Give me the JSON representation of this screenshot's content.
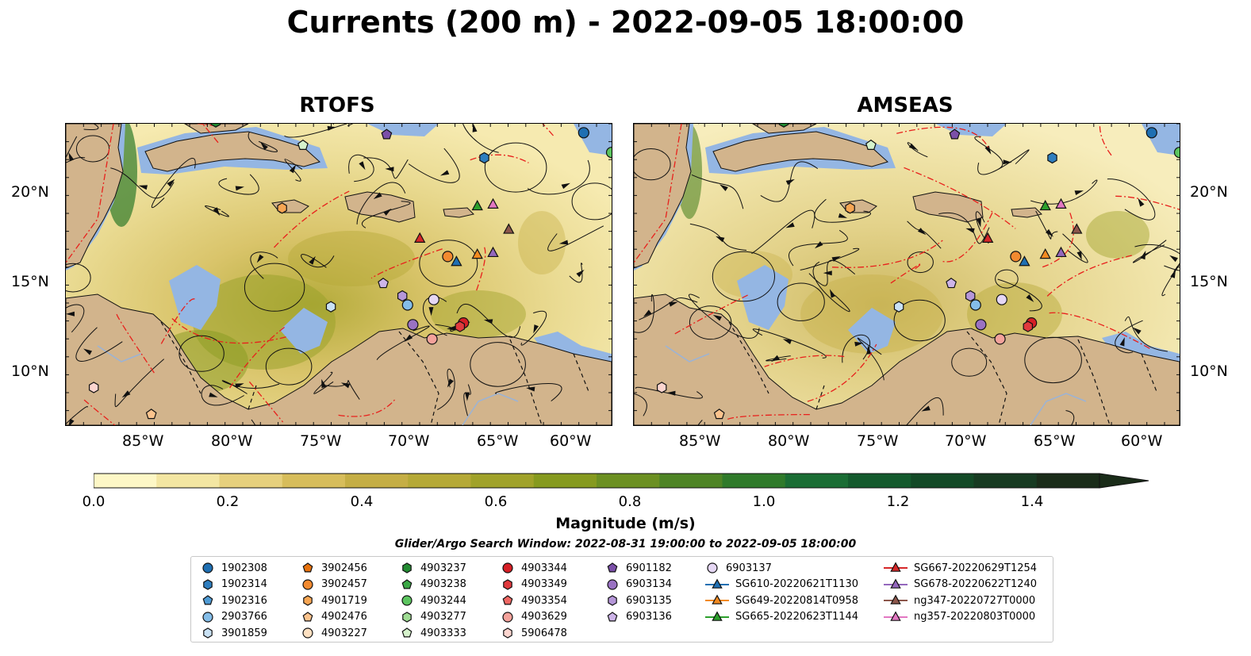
{
  "title": "Currents (200 m) - 2022-09-05 18:00:00",
  "panels": [
    {
      "title": "RTOFS"
    },
    {
      "title": "AMSEAS"
    }
  ],
  "lat_labels": [
    "20°N",
    "15°N",
    "10°N"
  ],
  "lon_labels": [
    "85°W",
    "80°W",
    "75°W",
    "70°W",
    "65°W",
    "60°W"
  ],
  "colorbar": {
    "label": "Magnitude (m/s)",
    "ticks": [
      "0.0",
      "0.2",
      "0.4",
      "0.6",
      "0.8",
      "1.0",
      "1.2",
      "1.4"
    ],
    "min": 0.0,
    "max": 1.6,
    "extend": "max",
    "colors": [
      "#fdf7c6",
      "#f3e6a2",
      "#e6d07d",
      "#d7bd5b",
      "#c5ae45",
      "#b5a937",
      "#a0a22a",
      "#869a1f",
      "#6c9022",
      "#4e8425",
      "#2f7a2a",
      "#1a6d34",
      "#145a2d",
      "#134a27",
      "#173b22",
      "#1a2c19"
    ]
  },
  "search_window": "Glider/Argo Search Window: 2022-08-31 19:00:00 to 2022-09-05 18:00:00",
  "colors": {
    "land": "#d2b48c",
    "shelf": "#94b6e3",
    "front": "#e8201c"
  },
  "legend": [
    {
      "label": "1902308",
      "marker": "circle",
      "color": "#1f6fb2"
    },
    {
      "label": "1902314",
      "marker": "hexagon",
      "color": "#2e7ebf"
    },
    {
      "label": "1902316",
      "marker": "pentagon",
      "color": "#4f9bd4"
    },
    {
      "label": "2903766",
      "marker": "circle",
      "color": "#84bde8"
    },
    {
      "label": "3901859",
      "marker": "hexagon",
      "color": "#c9e1f4"
    },
    {
      "label": "3902456",
      "marker": "pentagon",
      "color": "#e8720e"
    },
    {
      "label": "3902457",
      "marker": "circle",
      "color": "#f28a30"
    },
    {
      "label": "4901719",
      "marker": "hexagon",
      "color": "#f7a653"
    },
    {
      "label": "4902476",
      "marker": "pentagon",
      "color": "#fbc38d"
    },
    {
      "label": "4903227",
      "marker": "circle",
      "color": "#fde0c1"
    },
    {
      "label": "4903237",
      "marker": "hexagon",
      "color": "#238b32"
    },
    {
      "label": "4903238",
      "marker": "pentagon",
      "color": "#3aa845"
    },
    {
      "label": "4903244",
      "marker": "circle",
      "color": "#5cc55f"
    },
    {
      "label": "4903277",
      "marker": "hexagon",
      "color": "#9fdc93"
    },
    {
      "label": "4903333",
      "marker": "pentagon",
      "color": "#d6f3cc"
    },
    {
      "label": "4903344",
      "marker": "circle",
      "color": "#d61f26"
    },
    {
      "label": "4903349",
      "marker": "hexagon",
      "color": "#e0393d"
    },
    {
      "label": "4903354",
      "marker": "pentagon",
      "color": "#ef6763"
    },
    {
      "label": "4903629",
      "marker": "circle",
      "color": "#f4a29b"
    },
    {
      "label": "5906478",
      "marker": "hexagon",
      "color": "#fcd5cf"
    },
    {
      "label": "6901182",
      "marker": "pentagon",
      "color": "#7b4fa8"
    },
    {
      "label": "6903134",
      "marker": "circle",
      "color": "#9a72c3"
    },
    {
      "label": "6903135",
      "marker": "hexagon",
      "color": "#b596d8"
    },
    {
      "label": "6903136",
      "marker": "pentagon",
      "color": "#cdb4e8"
    },
    {
      "label": "6903137",
      "marker": "circle",
      "color": "#e5d7f4"
    },
    {
      "label": "SG610-20220621T1130",
      "marker": "triangle-line",
      "color": "#1f6fb2"
    },
    {
      "label": "SG649-20220814T0958",
      "marker": "triangle-line",
      "color": "#f28a20"
    },
    {
      "label": "SG665-20220623T1144",
      "marker": "triangle-line",
      "color": "#2ca02c"
    },
    {
      "label": "SG667-20220629T1254",
      "marker": "triangle-line",
      "color": "#d62728"
    },
    {
      "label": "SG678-20220622T1240",
      "marker": "triangle-line",
      "color": "#9467bd"
    },
    {
      "label": "ng347-20220727T0000",
      "marker": "triangle-line",
      "color": "#8c564b"
    },
    {
      "label": "ng357-20220803T0000",
      "marker": "triangle-line",
      "color": "#e377c2"
    }
  ],
  "map_markers": [
    {
      "label": "1902308",
      "lon": -59.8,
      "lat": 23.3
    },
    {
      "label": "1902314",
      "lon": -65.5,
      "lat": 21.9
    },
    {
      "label": "2903766",
      "lon": -69.9,
      "lat": 13.7
    },
    {
      "label": "3901859",
      "lon": -74.3,
      "lat": 13.6
    },
    {
      "label": "3902457",
      "lon": -67.6,
      "lat": 16.4
    },
    {
      "label": "4901719",
      "lon": -77.1,
      "lat": 19.1
    },
    {
      "label": "4902476",
      "lon": -84.6,
      "lat": 7.6
    },
    {
      "label": "4903237",
      "lon": -80.9,
      "lat": 23.9
    },
    {
      "label": "4903244",
      "lon": -58.2,
      "lat": 22.2
    },
    {
      "label": "4903333",
      "lon": -75.9,
      "lat": 22.6
    },
    {
      "label": "4903344",
      "lon": -66.7,
      "lat": 12.7
    },
    {
      "label": "4903349",
      "lon": -66.9,
      "lat": 12.5
    },
    {
      "label": "4903629",
      "lon": -68.5,
      "lat": 11.8
    },
    {
      "label": "5906478",
      "lon": -87.9,
      "lat": 9.1
    },
    {
      "label": "6901182",
      "lon": -71.1,
      "lat": 23.2
    },
    {
      "label": "6903134",
      "lon": -69.6,
      "lat": 12.6
    },
    {
      "label": "6903135",
      "lon": -70.2,
      "lat": 14.2
    },
    {
      "label": "6903136",
      "lon": -71.3,
      "lat": 14.9
    },
    {
      "label": "6903137",
      "lon": -68.4,
      "lat": 14.0
    },
    {
      "label": "SG610-20220621T1130",
      "lon": -67.1,
      "lat": 16.1
    },
    {
      "label": "SG649-20220814T0958",
      "lon": -65.9,
      "lat": 16.5
    },
    {
      "label": "SG665-20220623T1144",
      "lon": -65.9,
      "lat": 19.2
    },
    {
      "label": "SG667-20220629T1254",
      "lon": -69.2,
      "lat": 17.4
    },
    {
      "label": "SG678-20220622T1240",
      "lon": -65.0,
      "lat": 16.6
    },
    {
      "label": "ng347-20220727T0000",
      "lon": -64.1,
      "lat": 17.9
    },
    {
      "label": "ng357-20220803T0000",
      "lon": -65.0,
      "lat": 19.3
    }
  ]
}
